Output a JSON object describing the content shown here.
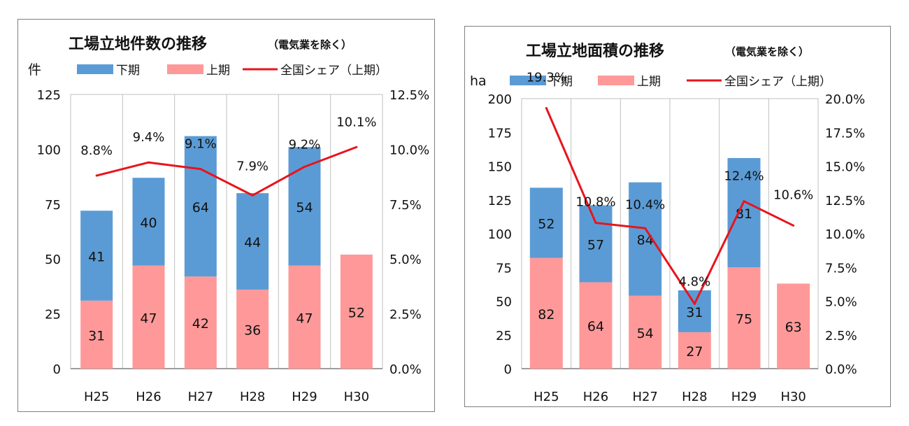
{
  "chart_data": [
    {
      "type": "bar",
      "stacked": true,
      "title": "工場立地件数の推移",
      "subtitle": "（電気業を除く）",
      "y_unit": "件",
      "categories": [
        "H25",
        "H26",
        "H27",
        "H28",
        "H29",
        "H30"
      ],
      "series": [
        {
          "name": "下期",
          "color": "#5b9bd5",
          "values": [
            41,
            40,
            64,
            44,
            54,
            null
          ]
        },
        {
          "name": "上期",
          "color": "#ff9999",
          "values": [
            31,
            47,
            42,
            36,
            47,
            52
          ]
        }
      ],
      "line_series": {
        "name": "全国シェア（上期）",
        "color": "#e8141c",
        "values": [
          8.8,
          9.4,
          9.1,
          7.9,
          9.2,
          10.1
        ],
        "labels": [
          "8.8%",
          "9.4%",
          "9.1%",
          "7.9%",
          "9.2%",
          "10.1%"
        ]
      },
      "ylim": [
        0,
        125
      ],
      "y_ticks": [
        "0",
        "25",
        "50",
        "75",
        "100",
        "125"
      ],
      "y2lim": [
        0,
        12.5
      ],
      "y2_ticks": [
        "0.0%",
        "2.5%",
        "5.0%",
        "7.5%",
        "10.0%",
        "12.5%"
      ],
      "grid": "vertical",
      "legend": "top"
    },
    {
      "type": "bar",
      "stacked": true,
      "title": "工場立地面積の推移",
      "subtitle": "（電気業を除く）",
      "y_unit": "ha",
      "categories": [
        "H25",
        "H26",
        "H27",
        "H28",
        "H29",
        "H30"
      ],
      "series": [
        {
          "name": "下期",
          "color": "#5b9bd5",
          "values": [
            52,
            57,
            84,
            31,
            81,
            null
          ]
        },
        {
          "name": "上期",
          "color": "#ff9999",
          "values": [
            82,
            64,
            54,
            27,
            75,
            63
          ]
        }
      ],
      "line_series": {
        "name": "全国シェア（上期）",
        "color": "#e8141c",
        "values": [
          19.3,
          10.8,
          10.4,
          4.8,
          12.4,
          10.6
        ],
        "labels": [
          "19.3%",
          "10.8%",
          "10.4%",
          "4.8%",
          "12.4%",
          "10.6%"
        ]
      },
      "ylim": [
        0,
        200
      ],
      "y_ticks": [
        "0",
        "25",
        "50",
        "75",
        "100",
        "125",
        "150",
        "175",
        "200"
      ],
      "y2lim": [
        0,
        20
      ],
      "y2_ticks": [
        "0.0%",
        "2.5%",
        "5.0%",
        "7.5%",
        "10.0%",
        "12.5%",
        "15.0%",
        "17.5%",
        "20.0%"
      ],
      "grid": "vertical",
      "legend": "top"
    }
  ]
}
